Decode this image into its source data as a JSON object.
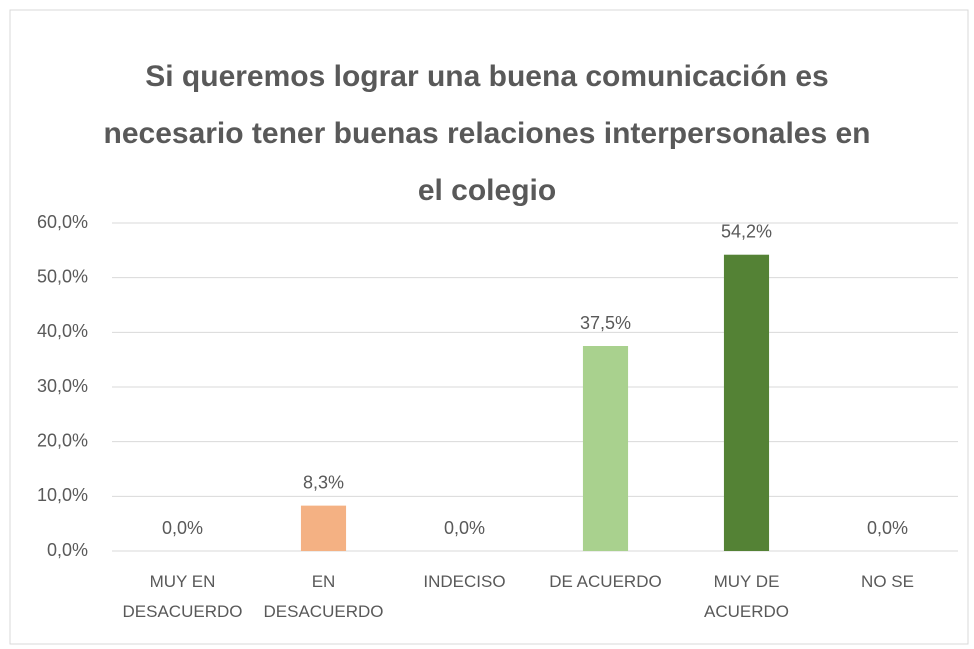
{
  "chart_data": {
    "type": "bar",
    "title": "Si queremos lograr una buena comunicación es necesario tener buenas relaciones interpersonales en el colegio",
    "categories": [
      "MUY EN DESACUERDO",
      "EN DESACUERDO",
      "INDECISO",
      "DE ACUERDO",
      "MUY DE ACUERDO",
      "NO SE"
    ],
    "values": [
      0,
      8.3,
      0,
      37.5,
      54.2,
      0
    ],
    "value_labels": [
      "0,0%",
      "8,3%",
      "0,0%",
      "37,5%",
      "54,2%",
      "0,0%"
    ],
    "colors": [
      "#c55a11",
      "#f4b183",
      "#ffd966",
      "#a9d18e",
      "#548235",
      "#a5a5a5"
    ],
    "ylim": [
      0,
      60
    ],
    "yticks": [
      {
        "value": 0,
        "label": "0,0%"
      },
      {
        "value": 10,
        "label": "10,0%"
      },
      {
        "value": 20,
        "label": "20,0%"
      },
      {
        "value": 30,
        "label": "30,0%"
      },
      {
        "value": 40,
        "label": "40,0%"
      },
      {
        "value": 50,
        "label": "50,0%"
      },
      {
        "value": 60,
        "label": "60,0%"
      }
    ],
    "grid": true
  }
}
